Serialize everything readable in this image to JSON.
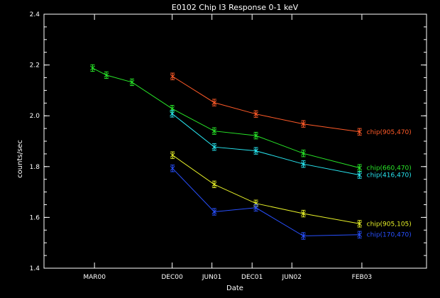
{
  "chart_data": {
    "type": "line",
    "title": "E0102 Chip I3 Response 0-1 keV",
    "xlabel": "Date",
    "ylabel": "counts/sec",
    "ylim": [
      1.4,
      2.4
    ],
    "yticks": [
      1.4,
      1.6,
      1.8,
      2.0,
      2.2,
      2.4
    ],
    "ytick_labels": [
      "1.4",
      "1.6",
      "1.8",
      "2.0",
      "2.2",
      "2.4"
    ],
    "xlim": [
      0,
      100
    ],
    "xticks": [
      {
        "x": 13.2,
        "label": "MAR00"
      },
      {
        "x": 33.5,
        "label": "DEC00"
      },
      {
        "x": 43.9,
        "label": "JUN01"
      },
      {
        "x": 54.4,
        "label": "DEC01"
      },
      {
        "x": 64.8,
        "label": "JUN02"
      },
      {
        "x": 83.1,
        "label": "FEB03"
      }
    ],
    "series": [
      {
        "name": "chip(905,470)",
        "color": "#ff5a28",
        "x": [
          33.6,
          44.5,
          55.4,
          67.8,
          82.5
        ],
        "y": [
          2.155,
          2.052,
          2.007,
          1.968,
          1.937
        ],
        "err": [
          0.013,
          0.013,
          0.013,
          0.013,
          0.013
        ]
      },
      {
        "name": "chip(660,470)",
        "color": "#28e628",
        "x": [
          12.7,
          16.3,
          23.0,
          33.5,
          44.5,
          55.4,
          67.8,
          82.5
        ],
        "y": [
          2.188,
          2.16,
          2.132,
          2.028,
          1.94,
          1.922,
          1.852,
          1.795
        ],
        "err": [
          0.013,
          0.013,
          0.013,
          0.013,
          0.013,
          0.013,
          0.013,
          0.013
        ]
      },
      {
        "name": "chip(416,470)",
        "color": "#28e6f0",
        "x": [
          33.5,
          44.5,
          55.4,
          67.8,
          82.5
        ],
        "y": [
          2.008,
          1.877,
          1.862,
          1.81,
          1.767
        ],
        "err": [
          0.013,
          0.013,
          0.013,
          0.013,
          0.013
        ]
      },
      {
        "name": "chip(905,105)",
        "color": "#e6f028",
        "x": [
          33.6,
          44.5,
          55.4,
          67.8,
          82.5
        ],
        "y": [
          1.845,
          1.73,
          1.655,
          1.615,
          1.575
        ],
        "err": [
          0.013,
          0.013,
          0.013,
          0.013,
          0.013
        ]
      },
      {
        "name": "chip(170,470)",
        "color": "#2850ff",
        "x": [
          33.6,
          44.5,
          55.4,
          67.8,
          82.5
        ],
        "y": [
          1.793,
          1.622,
          1.638,
          1.527,
          1.532
        ],
        "err": [
          0.013,
          0.013,
          0.013,
          0.013,
          0.013
        ]
      }
    ]
  }
}
